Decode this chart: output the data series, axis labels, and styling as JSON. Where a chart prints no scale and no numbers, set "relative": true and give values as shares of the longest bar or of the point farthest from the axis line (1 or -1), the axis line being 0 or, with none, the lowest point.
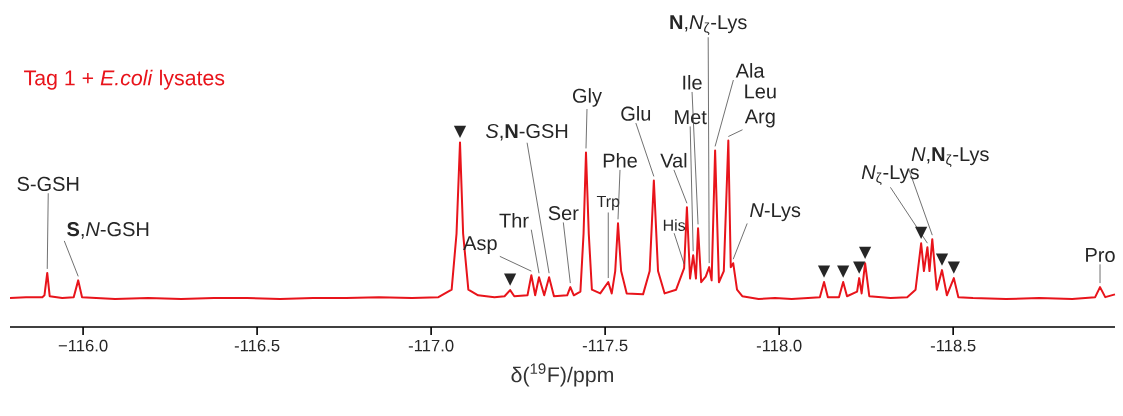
{
  "chart_data": {
    "type": "line",
    "title": "Tag 1 + *E.coli* lysates",
    "xlabel": "δ($^{19}$F)/ppm",
    "relative": true,
    "xlim": [
      -115.79,
      -118.965
    ],
    "xticks": [
      {
        "value": -116.0,
        "label": "−116.0"
      },
      {
        "value": -116.5,
        "label": "-116.5"
      },
      {
        "value": -117.0,
        "label": "-117.0"
      },
      {
        "value": -117.5,
        "label": "-117.5"
      },
      {
        "value": -118.0,
        "label": "-118.0"
      },
      {
        "value": -118.5,
        "label": "-118.5"
      }
    ],
    "series": [
      {
        "color": "#e8141b",
        "x": [
          -115.79,
          -115.836,
          -115.883,
          -115.889,
          -115.897,
          -115.904,
          -115.94,
          -115.973,
          -115.986,
          -115.997,
          -116.092,
          -116.187,
          -116.282,
          -116.376,
          -116.471,
          -116.566,
          -116.661,
          -116.756,
          -116.85,
          -116.945,
          -117.021,
          -117.059,
          -117.073,
          -117.083,
          -117.092,
          -117.107,
          -117.135,
          -117.182,
          -117.211,
          -117.227,
          -117.239,
          -117.277,
          -117.288,
          -117.299,
          -117.31,
          -117.325,
          -117.339,
          -117.353,
          -117.391,
          -117.4,
          -117.41,
          -117.429,
          -117.438,
          -117.445,
          -117.453,
          -117.462,
          -117.486,
          -117.509,
          -117.519,
          -117.529,
          -117.537,
          -117.546,
          -117.562,
          -117.609,
          -117.628,
          -117.64,
          -117.652,
          -117.671,
          -117.704,
          -117.727,
          -117.735,
          -117.744,
          -117.753,
          -117.761,
          -117.767,
          -117.776,
          -117.789,
          -117.799,
          -117.806,
          -117.816,
          -117.827,
          -117.841,
          -117.854,
          -117.861,
          -117.868,
          -117.879,
          -117.894,
          -117.941,
          -117.988,
          -118.036,
          -118.083,
          -118.117,
          -118.129,
          -118.14,
          -118.172,
          -118.184,
          -118.195,
          -118.224,
          -118.23,
          -118.237,
          -118.247,
          -118.259,
          -118.32,
          -118.368,
          -118.392,
          -118.408,
          -118.416,
          -118.426,
          -118.432,
          -118.44,
          -118.453,
          -118.468,
          -118.482,
          -118.502,
          -118.515,
          -118.557,
          -118.652,
          -118.747,
          -118.842,
          -118.908,
          -118.922,
          -118.937,
          -118.965
        ],
        "values": [
          0.155,
          0.16,
          0.16,
          0.17,
          0.29,
          0.165,
          0.155,
          0.16,
          0.25,
          0.16,
          0.15,
          0.155,
          0.15,
          0.155,
          0.155,
          0.15,
          0.155,
          0.155,
          0.16,
          0.155,
          0.16,
          0.2,
          0.5,
          0.99,
          0.5,
          0.2,
          0.17,
          0.16,
          0.165,
          0.198,
          0.165,
          0.17,
          0.278,
          0.17,
          0.267,
          0.17,
          0.267,
          0.165,
          0.17,
          0.214,
          0.17,
          0.19,
          0.5,
          0.936,
          0.5,
          0.2,
          0.18,
          0.241,
          0.18,
          0.3,
          0.556,
          0.3,
          0.18,
          0.175,
          0.3,
          0.786,
          0.3,
          0.18,
          0.2,
          0.316,
          0.642,
          0.26,
          0.385,
          0.26,
          0.529,
          0.24,
          0.27,
          0.321,
          0.25,
          0.947,
          0.24,
          0.3,
          1.0,
          0.32,
          0.342,
          0.2,
          0.165,
          0.15,
          0.155,
          0.15,
          0.155,
          0.16,
          0.241,
          0.16,
          0.16,
          0.241,
          0.165,
          0.19,
          0.262,
          0.18,
          0.342,
          0.165,
          0.155,
          0.16,
          0.2,
          0.449,
          0.3,
          0.428,
          0.3,
          0.471,
          0.2,
          0.305,
          0.17,
          0.262,
          0.16,
          0.155,
          0.15,
          0.155,
          0.15,
          0.16,
          0.214,
          0.16,
          0.175
        ]
      }
    ],
    "annotations": [
      {
        "text": "S-GSH",
        "x": -115.897,
        "y": 0.29
      },
      {
        "text": "**S**,*N*-GSH",
        "x": -115.986,
        "y": 0.25
      },
      {
        "text": "Asp",
        "x": -117.288,
        "y": 0.278
      },
      {
        "text": "Thr",
        "x": -117.31,
        "y": 0.267
      },
      {
        "text": "*S*,**N**-GSH",
        "x": -117.339,
        "y": 0.267
      },
      {
        "text": "Ser",
        "x": -117.4,
        "y": 0.214
      },
      {
        "text": "Gly",
        "x": -117.445,
        "y": 0.936
      },
      {
        "text": "Trp",
        "x": -117.509,
        "y": 0.241
      },
      {
        "text": "Phe",
        "x": -117.537,
        "y": 0.556
      },
      {
        "text": "Glu",
        "x": -117.64,
        "y": 0.786
      },
      {
        "text": "His",
        "x": -117.727,
        "y": 0.316
      },
      {
        "text": "Val",
        "x": -117.735,
        "y": 0.642
      },
      {
        "text": "Met",
        "x": -117.753,
        "y": 0.385
      },
      {
        "text": "Ile",
        "x": -117.767,
        "y": 0.529
      },
      {
        "text": "**N**,*N*$_{ζ}$-Lys",
        "x": -117.799,
        "y": 0.321
      },
      {
        "text": "Ala",
        "x": -117.816,
        "y": 0.947
      },
      {
        "text": "Leu",
        "x": -117.854,
        "y": 1.0
      },
      {
        "text": "Arg",
        "x": -117.854,
        "y": 1.0
      },
      {
        "text": "*N*-Lys",
        "x": -117.868,
        "y": 0.342
      },
      {
        "text": "*N*$_{ζ}$-Lys",
        "x": -118.426,
        "y": 0.428
      },
      {
        "text": "*N*,**N**$_{ζ}$-Lys",
        "x": -118.44,
        "y": 0.471
      },
      {
        "text": "Pro",
        "x": -118.922,
        "y": 0.214
      },
      {
        "text": "▼",
        "x": -117.083,
        "y": 0.99
      },
      {
        "text": "▼",
        "x": -117.227,
        "y": 0.198
      },
      {
        "text": "▼",
        "x": -118.129,
        "y": 0.241
      },
      {
        "text": "▼",
        "x": -118.184,
        "y": 0.241
      },
      {
        "text": "▼",
        "x": -118.23,
        "y": 0.262
      },
      {
        "text": "▼",
        "x": -118.247,
        "y": 0.342
      },
      {
        "text": "▼",
        "x": -118.408,
        "y": 0.449
      },
      {
        "text": "▼",
        "x": -118.468,
        "y": 0.305
      },
      {
        "text": "▼",
        "x": -118.502,
        "y": 0.262
      }
    ]
  }
}
